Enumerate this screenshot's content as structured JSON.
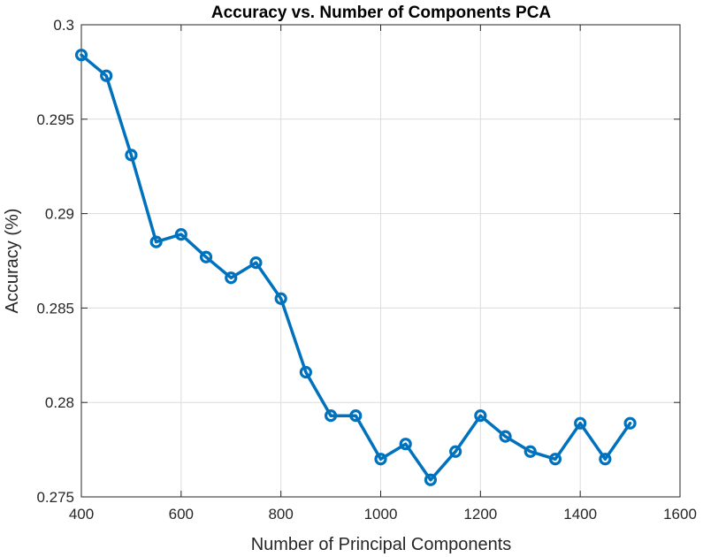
{
  "chart_data": {
    "type": "line",
    "title": "Accuracy vs. Number of Components PCA",
    "xlabel": "Number of Principal Components",
    "ylabel": "Accuracy (%)",
    "xlim": [
      400,
      1600
    ],
    "ylim": [
      0.275,
      0.3
    ],
    "xticks": [
      400,
      600,
      800,
      1000,
      1200,
      1400,
      1600
    ],
    "yticks": [
      0.275,
      0.28,
      0.285,
      0.29,
      0.295,
      0.3
    ],
    "xtick_labels": [
      "400",
      "600",
      "800",
      "1000",
      "1200",
      "1400",
      "1600"
    ],
    "ytick_labels": [
      "0.275",
      "0.28",
      "0.285",
      "0.29",
      "0.295",
      "0.3"
    ],
    "grid": true,
    "marker": "circle",
    "color": "#0072BD",
    "series": [
      {
        "x": [
          400,
          450,
          500,
          550,
          600,
          650,
          700,
          750,
          800,
          850,
          900,
          950,
          1000,
          1050,
          1100,
          1150,
          1200,
          1250,
          1300,
          1350,
          1400,
          1450,
          1500
        ],
        "y": [
          0.2984,
          0.2973,
          0.2931,
          0.2885,
          0.2889,
          0.2877,
          0.2866,
          0.2874,
          0.2855,
          0.2816,
          0.2793,
          0.2793,
          0.277,
          0.2778,
          0.2759,
          0.2774,
          0.2793,
          0.2782,
          0.2774,
          0.277,
          0.2789,
          0.277,
          0.2789
        ]
      }
    ]
  }
}
